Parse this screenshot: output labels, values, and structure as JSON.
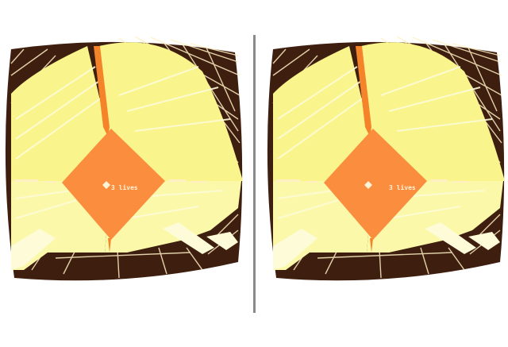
{
  "view": {
    "mode": "stereoscopic-vr",
    "eyes": [
      "left-eye",
      "right-eye"
    ]
  },
  "hud": {
    "lives_text": "3 lives"
  },
  "colors": {
    "background": "#ffffff",
    "divider": "#8a8a8a",
    "wall_dark": "#3e1f0f",
    "wall_light_yellow": "#f9f58c",
    "wall_pale_yellow": "#fbf9a9",
    "floor_cream": "#fdfbd8",
    "center_orange": "#fb8d3e",
    "grid_line": "#fff0c4",
    "edge_orange": "#f5832a"
  }
}
